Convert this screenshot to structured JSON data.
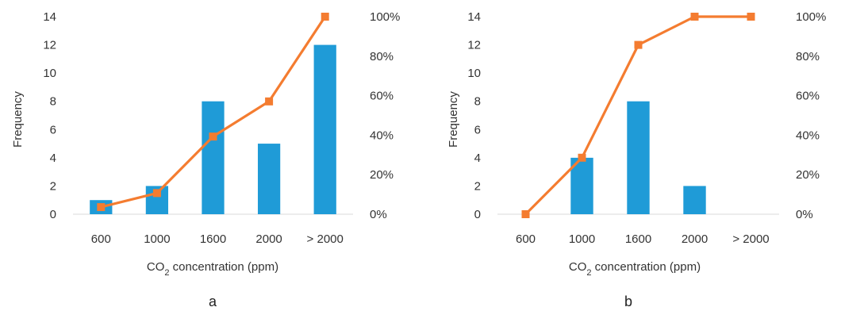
{
  "chart_data": [
    {
      "type": "bar",
      "panel_label": "a",
      "categories": [
        "600",
        "1000",
        "1600",
        "2000",
        "> 2000"
      ],
      "series": [
        {
          "values": [
            1,
            2,
            8,
            5,
            12
          ],
          "axis": "left",
          "color": "#1f9bd7"
        },
        {
          "type": "line",
          "values": [
            3.6,
            10.7,
            39.3,
            57.1,
            100
          ],
          "axis": "right",
          "color": "#f47c30"
        }
      ],
      "xlabel": {
        "prefix": "CO",
        "sub": "2",
        "suffix": " concentration (ppm)"
      },
      "ylabel": "Frequency",
      "ylim": [
        0,
        14
      ],
      "y_ticks": [
        0,
        2,
        4,
        6,
        8,
        10,
        12,
        14
      ],
      "y2lim": [
        0,
        100
      ],
      "y2_ticks": [
        "0%",
        "20%",
        "40%",
        "60%",
        "80%",
        "100%"
      ]
    },
    {
      "type": "bar",
      "panel_label": "b",
      "categories": [
        "600",
        "1000",
        "1600",
        "2000",
        "> 2000"
      ],
      "series": [
        {
          "values": [
            0,
            4,
            8,
            2,
            0
          ],
          "axis": "left",
          "color": "#1f9bd7"
        },
        {
          "type": "line",
          "values": [
            0,
            28.6,
            85.7,
            100,
            100
          ],
          "axis": "right",
          "color": "#f47c30"
        }
      ],
      "xlabel": {
        "prefix": "CO",
        "sub": "2",
        "suffix": " concentration (ppm)"
      },
      "ylabel": "Frequency",
      "ylim": [
        0,
        14
      ],
      "y_ticks": [
        0,
        2,
        4,
        6,
        8,
        10,
        12,
        14
      ],
      "y2lim": [
        0,
        100
      ],
      "y2_ticks": [
        "0%",
        "20%",
        "40%",
        "60%",
        "80%",
        "100%"
      ]
    }
  ]
}
